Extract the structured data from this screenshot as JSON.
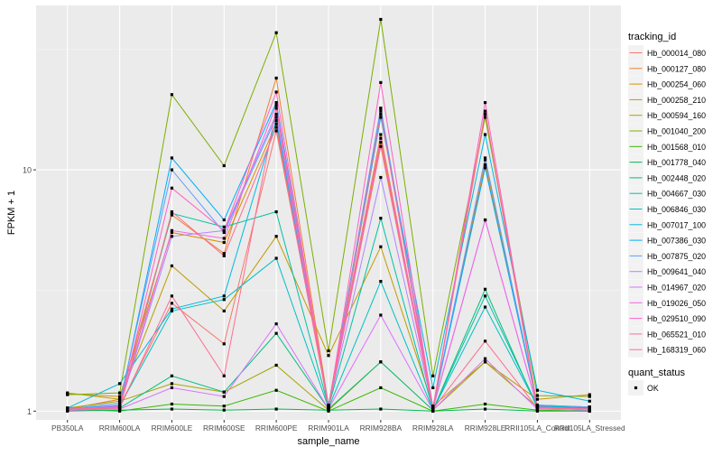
{
  "chart_data": {
    "type": "line",
    "title": "",
    "xlabel": "sample_name",
    "ylabel": "FPKM + 1",
    "y_scale": "log10",
    "ylim": [
      0.92,
      48
    ],
    "yticks": [
      1,
      10
    ],
    "ytick_labels": [
      "1",
      "10"
    ],
    "grid": true,
    "legend_position": "right",
    "categories": [
      "PB350LA",
      "RRIM600LA",
      "RRIM600LE",
      "RRIM600SE",
      "RRIM600PE",
      "RRIM901LA",
      "RRIM928BA",
      "RRIM928LA",
      "RRIM928LE",
      "RRII105LA_Control",
      "RRII105LA_Stressed"
    ],
    "legend_title": "tracking_id",
    "series": [
      {
        "name": "Hb_000014_080",
        "color": "#F8766D",
        "values": [
          1.02,
          1.05,
          2.8,
          1.9,
          14.5,
          1.05,
          18.0,
          1.03,
          17.0,
          1.03,
          1.02
        ]
      },
      {
        "name": "Hb_000127_080",
        "color": "#EA8331",
        "values": [
          1.02,
          1.12,
          6.5,
          4.5,
          24.0,
          1.06,
          14.0,
          1.02,
          11.0,
          1.05,
          1.03
        ]
      },
      {
        "name": "Hb_000254_060",
        "color": "#D89000",
        "values": [
          1.18,
          1.15,
          5.5,
          5.0,
          15.5,
          1.06,
          13.0,
          1.04,
          10.5,
          1.05,
          1.04
        ]
      },
      {
        "name": "Hb_000258_210",
        "color": "#C09B00",
        "values": [
          1.19,
          1.12,
          4.0,
          2.6,
          5.3,
          1.7,
          4.8,
          1.05,
          1.6,
          1.12,
          1.17
        ]
      },
      {
        "name": "Hb_000594_160",
        "color": "#A3A500",
        "values": [
          1.03,
          1.1,
          1.3,
          1.2,
          1.55,
          1.01,
          1.6,
          1.01,
          1.6,
          1.04,
          1.03
        ]
      },
      {
        "name": "Hb_001040_200",
        "color": "#7CAE00",
        "values": [
          1.17,
          1.19,
          20.5,
          10.4,
          37.0,
          1.78,
          42.0,
          1.4,
          16.5,
          1.16,
          1.15
        ]
      },
      {
        "name": "Hb_001568_010",
        "color": "#39B600",
        "values": [
          1.02,
          1.0,
          1.07,
          1.05,
          1.22,
          1.0,
          1.25,
          1.0,
          1.07,
          1.01,
          1.0
        ]
      },
      {
        "name": "Hb_001778_040",
        "color": "#00BB4E",
        "values": [
          1.0,
          1.01,
          1.02,
          1.01,
          1.02,
          1.01,
          1.02,
          1.0,
          1.02,
          1.0,
          1.0
        ]
      },
      {
        "name": "Hb_002448_020",
        "color": "#00BF7D",
        "values": [
          1.01,
          1.03,
          1.4,
          1.2,
          2.1,
          1.02,
          1.6,
          1.01,
          3.2,
          1.03,
          1.02
        ]
      },
      {
        "name": "Hb_004667_030",
        "color": "#00C1A3",
        "values": [
          1.03,
          1.03,
          6.6,
          5.8,
          6.7,
          1.04,
          6.3,
          1.01,
          3.0,
          1.05,
          1.03
        ]
      },
      {
        "name": "Hb_006846_030",
        "color": "#00BFC4",
        "values": [
          1.02,
          1.05,
          2.6,
          2.9,
          4.3,
          1.03,
          3.45,
          1.01,
          2.7,
          1.05,
          1.03
        ]
      },
      {
        "name": "Hb_007017_100",
        "color": "#00B9E3",
        "values": [
          1.03,
          1.3,
          2.65,
          3.0,
          16.0,
          1.04,
          16.5,
          1.25,
          14.0,
          1.22,
          1.1
        ]
      },
      {
        "name": "Hb_007386_030",
        "color": "#00ADFA",
        "values": [
          1.02,
          1.06,
          11.2,
          6.2,
          19.0,
          1.05,
          17.5,
          1.04,
          10.2,
          1.06,
          1.04
        ]
      },
      {
        "name": "Hb_007875_020",
        "color": "#619CFF",
        "values": [
          1.02,
          1.08,
          10.0,
          5.5,
          16.5,
          1.05,
          18.0,
          1.04,
          11.2,
          1.06,
          1.04
        ]
      },
      {
        "name": "Hb_009641_040",
        "color": "#AE87FF",
        "values": [
          1.02,
          1.04,
          5.3,
          5.6,
          17.0,
          1.04,
          9.3,
          1.02,
          6.2,
          1.04,
          1.02
        ]
      },
      {
        "name": "Hb_014967_020",
        "color": "#DB72FB",
        "values": [
          1.01,
          1.02,
          1.25,
          1.15,
          2.3,
          1.02,
          2.5,
          1.01,
          1.65,
          1.02,
          1.01
        ]
      },
      {
        "name": "Hb_019026_050",
        "color": "#F564E3",
        "values": [
          1.02,
          1.05,
          5.6,
          5.2,
          18.5,
          1.04,
          13.5,
          1.03,
          6.2,
          1.04,
          1.02
        ]
      },
      {
        "name": "Hb_029510_090",
        "color": "#FF61C3",
        "values": [
          1.01,
          1.04,
          8.4,
          5.6,
          21.0,
          1.03,
          23.0,
          1.02,
          19.0,
          1.04,
          1.02
        ]
      },
      {
        "name": "Hb_065521_010",
        "color": "#FF6C91",
        "values": [
          1.02,
          1.03,
          3.0,
          1.4,
          18.0,
          1.03,
          12.5,
          1.02,
          1.95,
          1.03,
          1.02
        ]
      },
      {
        "name": "Hb_168319_060",
        "color": "#FF6C91",
        "values": [
          1.02,
          1.03,
          6.7,
          4.4,
          15.0,
          1.03,
          17.0,
          1.02,
          17.5,
          1.03,
          1.02
        ]
      }
    ],
    "shape_legend": {
      "title": "quant_status",
      "items": [
        {
          "label": "OK",
          "shape": "square"
        }
      ]
    }
  }
}
